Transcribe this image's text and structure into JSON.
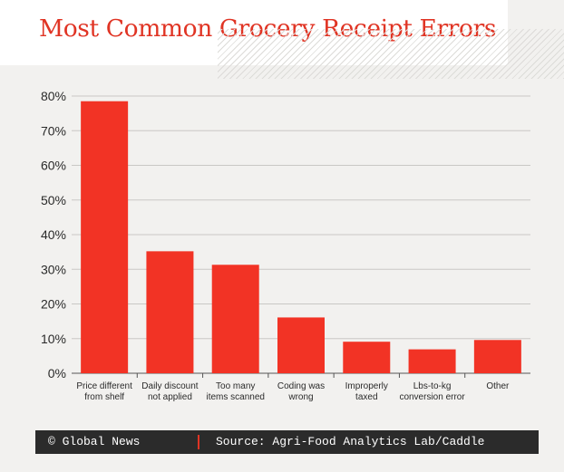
{
  "title": "Most Common Grocery Receipt Errors",
  "footer": {
    "logo": "© Global News",
    "source": "Source: Agri-Food Analytics Lab/Caddle"
  },
  "colors": {
    "bar": "#f23325",
    "title": "#e03424",
    "footer_bg": "#2b2b2b",
    "separator": "#e03424"
  },
  "chart_data": {
    "type": "bar",
    "categories": [
      [
        "Price different",
        "from shelf"
      ],
      [
        "Daily discount",
        "not applied"
      ],
      [
        "Too many",
        "items scanned"
      ],
      [
        "Coding was",
        "wrong"
      ],
      [
        "Improperly",
        "taxed"
      ],
      [
        "Lbs-to-kg",
        "conversion error"
      ],
      [
        "Other"
      ]
    ],
    "values": [
      78.5,
      35.2,
      31.3,
      16.1,
      9.1,
      6.9,
      9.6
    ],
    "yticks": [
      "0%",
      "10%",
      "20%",
      "30%",
      "40%",
      "50%",
      "60%",
      "70%",
      "80%"
    ],
    "ylim": [
      0,
      80
    ],
    "grid": true,
    "legend": "none"
  }
}
